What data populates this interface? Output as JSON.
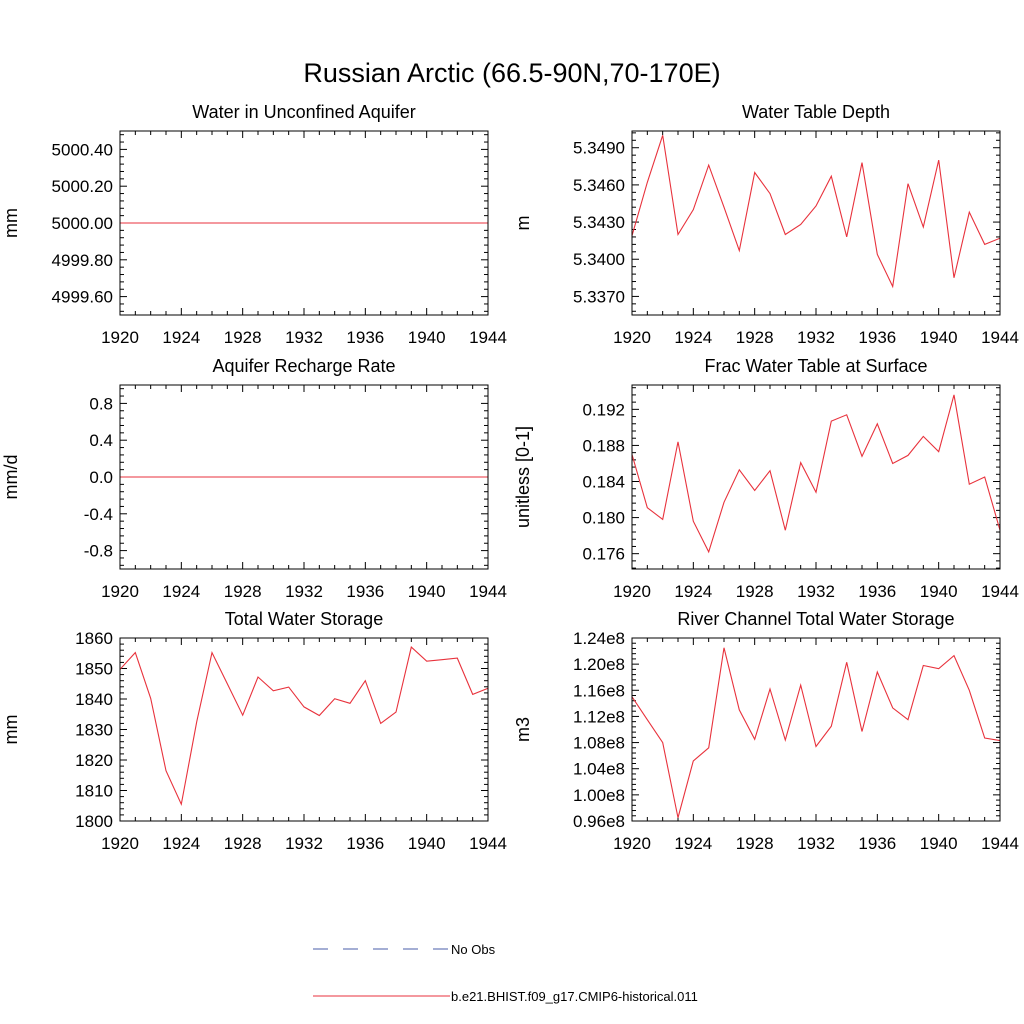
{
  "figure": {
    "title": "Russian Arctic (66.5-90N,70-170E)"
  },
  "legend": {
    "obs_label": "No Obs",
    "obs_color": "#4a5ea8",
    "model_label": "b.e21.BHIST.f09_g17.CMIP6-historical.011",
    "model_color": "#e8323c"
  },
  "chart_data": [
    {
      "type": "line",
      "title": "Water in Unconfined Aquifer",
      "ylabel": "mm",
      "xlim": [
        1920,
        1944
      ],
      "xticks": [
        "1920",
        "1924",
        "1928",
        "1932",
        "1936",
        "1940",
        "1944"
      ],
      "ylim": [
        4999.5,
        5000.5
      ],
      "yticks": [
        4999.6,
        4999.8,
        5000.0,
        5000.2,
        5000.4
      ],
      "ytick_labels": [
        "4999.60",
        "4999.80",
        "5000.00",
        "5000.20",
        "5000.40"
      ],
      "x": [
        1920,
        1921,
        1922,
        1923,
        1924,
        1925,
        1926,
        1927,
        1928,
        1929,
        1930,
        1931,
        1932,
        1933,
        1934,
        1935,
        1936,
        1937,
        1938,
        1939,
        1940,
        1941,
        1942,
        1943,
        1944
      ],
      "y": [
        5000,
        5000,
        5000,
        5000,
        5000,
        5000,
        5000,
        5000,
        5000,
        5000,
        5000,
        5000,
        5000,
        5000,
        5000,
        5000,
        5000,
        5000,
        5000,
        5000,
        5000,
        5000,
        5000,
        5000,
        5000
      ]
    },
    {
      "type": "line",
      "title": "Water Table Depth",
      "ylabel": "m",
      "xlim": [
        1920,
        1944
      ],
      "xticks": [
        "1920",
        "1924",
        "1928",
        "1932",
        "1936",
        "1940",
        "1944"
      ],
      "ylim": [
        5.3355,
        5.35035
      ],
      "yticks": [
        5.337,
        5.34,
        5.343,
        5.346,
        5.349
      ],
      "ytick_labels": [
        "5.3370",
        "5.3400",
        "5.3430",
        "5.3460",
        "5.3490"
      ],
      "x": [
        1920,
        1921,
        1922,
        1923,
        1924,
        1925,
        1926,
        1927,
        1928,
        1929,
        1930,
        1931,
        1932,
        1933,
        1934,
        1935,
        1936,
        1937,
        1938,
        1939,
        1940,
        1941,
        1942,
        1943,
        1944
      ],
      "y": [
        5.3419,
        5.3462,
        5.35,
        5.342,
        5.344,
        5.3476,
        5.3442,
        5.3407,
        5.347,
        5.3453,
        5.342,
        5.3428,
        5.3443,
        5.3467,
        5.3418,
        5.3478,
        5.3404,
        5.3378,
        5.3461,
        5.3426,
        5.348,
        5.3385,
        5.3438,
        5.3412,
        5.3417
      ]
    },
    {
      "type": "line",
      "title": "Aquifer Recharge Rate",
      "ylabel": "mm/d",
      "xlim": [
        1920,
        1944
      ],
      "xticks": [
        "1920",
        "1924",
        "1928",
        "1932",
        "1936",
        "1940",
        "1944"
      ],
      "ylim": [
        -1.0,
        1.0
      ],
      "yticks": [
        -0.8,
        -0.4,
        0.0,
        0.4,
        0.8
      ],
      "ytick_labels": [
        "-0.8",
        "-0.4",
        "0.0",
        "0.4",
        "0.8"
      ],
      "x": [
        1920,
        1921,
        1922,
        1923,
        1924,
        1925,
        1926,
        1927,
        1928,
        1929,
        1930,
        1931,
        1932,
        1933,
        1934,
        1935,
        1936,
        1937,
        1938,
        1939,
        1940,
        1941,
        1942,
        1943,
        1944
      ],
      "y": [
        0,
        0,
        0,
        0,
        0,
        0,
        0,
        0,
        0,
        0,
        0,
        0,
        0,
        0,
        0,
        0,
        0,
        0,
        0,
        0,
        0,
        0,
        0,
        0,
        0
      ]
    },
    {
      "type": "line",
      "title": "Frac Water Table at Surface",
      "ylabel": "unitless [0-1]",
      "xlim": [
        1920,
        1944
      ],
      "xticks": [
        "1920",
        "1924",
        "1928",
        "1932",
        "1936",
        "1940",
        "1944"
      ],
      "ylim": [
        0.1743,
        0.1947
      ],
      "yticks": [
        0.176,
        0.18,
        0.184,
        0.188,
        0.192
      ],
      "ytick_labels": [
        "0.176",
        "0.180",
        "0.184",
        "0.188",
        "0.192"
      ],
      "x": [
        1920,
        1921,
        1922,
        1923,
        1924,
        1925,
        1926,
        1927,
        1928,
        1929,
        1930,
        1931,
        1932,
        1933,
        1934,
        1935,
        1936,
        1937,
        1938,
        1939,
        1940,
        1941,
        1942,
        1943,
        1944
      ],
      "y": [
        0.187,
        0.1811,
        0.1798,
        0.1884,
        0.1796,
        0.1762,
        0.1817,
        0.1853,
        0.183,
        0.1852,
        0.1786,
        0.1861,
        0.1828,
        0.1907,
        0.1914,
        0.1868,
        0.1904,
        0.186,
        0.1869,
        0.189,
        0.1873,
        0.1936,
        0.1837,
        0.1845,
        0.1786
      ]
    },
    {
      "type": "line",
      "title": "Total Water Storage",
      "ylabel": "mm",
      "xlim": [
        1920,
        1944
      ],
      "xticks": [
        "1920",
        "1924",
        "1928",
        "1932",
        "1936",
        "1940",
        "1944"
      ],
      "ylim": [
        1800,
        1860
      ],
      "yticks": [
        1800,
        1810,
        1820,
        1830,
        1840,
        1850,
        1860
      ],
      "ytick_labels": [
        "1800",
        "1810",
        "1820",
        "1830",
        "1840",
        "1850",
        "1860"
      ],
      "x": [
        1920,
        1921,
        1922,
        1923,
        1924,
        1925,
        1926,
        1927,
        1928,
        1929,
        1930,
        1931,
        1932,
        1933,
        1934,
        1935,
        1936,
        1937,
        1938,
        1939,
        1940,
        1941,
        1942,
        1943,
        1944
      ],
      "y": [
        1849.7,
        1855.2,
        1840.2,
        1816.5,
        1805.5,
        1832.5,
        1855.2,
        1845.0,
        1834.7,
        1847.2,
        1842.7,
        1843.9,
        1837.4,
        1834.6,
        1840.1,
        1838.6,
        1846.0,
        1832.0,
        1835.7,
        1857.0,
        1852.4,
        1852.9,
        1853.4,
        1841.5,
        1843.5
      ]
    },
    {
      "type": "line",
      "title": "River Channel Total Water Storage",
      "ylabel": "m3",
      "xlim": [
        1920,
        1944
      ],
      "xticks": [
        "1920",
        "1924",
        "1928",
        "1932",
        "1936",
        "1940",
        "1944"
      ],
      "ylim": [
        96000000.0,
        124000000.0
      ],
      "yticks": [
        96000000.0,
        100000000.0,
        104000000.0,
        108000000.0,
        112000000.0,
        116000000.0,
        120000000.0,
        124000000.0
      ],
      "ytick_labels": [
        "0.96e8",
        "1.00e8",
        "1.04e8",
        "1.08e8",
        "1.12e8",
        "1.16e8",
        "1.20e8",
        "1.24e8"
      ],
      "x": [
        1920,
        1921,
        1922,
        1923,
        1924,
        1925,
        1926,
        1927,
        1928,
        1929,
        1930,
        1931,
        1932,
        1933,
        1934,
        1935,
        1936,
        1937,
        1938,
        1939,
        1940,
        1941,
        1942,
        1943,
        1944
      ],
      "y": [
        115000000.0,
        111500000.0,
        108000000.0,
        96500000.0,
        105200000.0,
        107200000.0,
        122500000.0,
        113000000.0,
        108500000.0,
        116200000.0,
        108400000.0,
        116800000.0,
        107400000.0,
        110500000.0,
        120300000.0,
        109700000.0,
        118800000.0,
        113300000.0,
        111500000.0,
        119800000.0,
        119300000.0,
        121300000.0,
        116000000.0,
        108700000.0,
        108300000.0
      ]
    }
  ]
}
